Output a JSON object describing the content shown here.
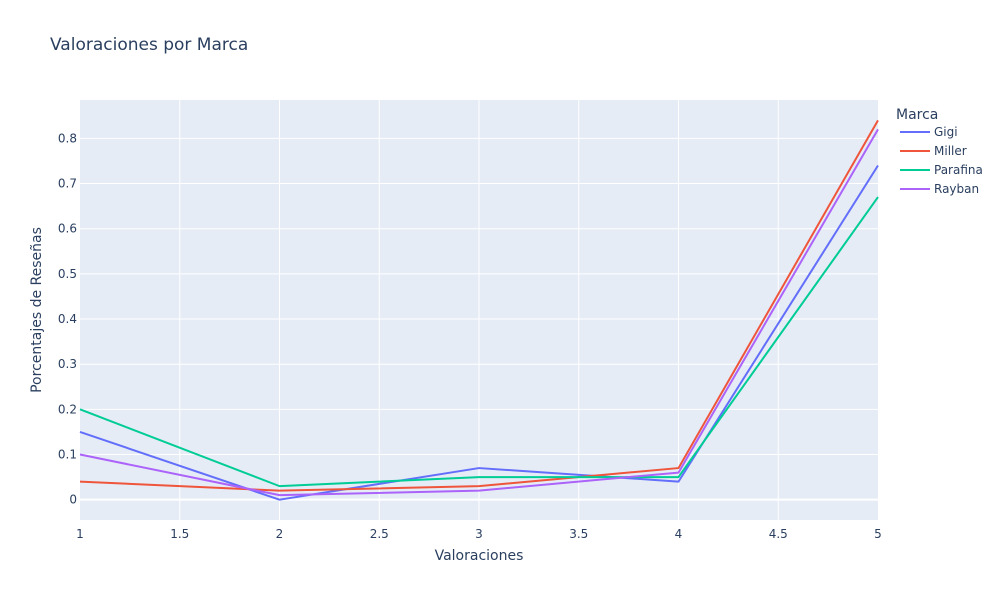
{
  "chart_data": {
    "type": "line",
    "title": "Valoraciones por Marca",
    "xlabel": "Valoraciones",
    "ylabel": "Porcentajes de Reseñas",
    "xlim": [
      1,
      5
    ],
    "ylim": [
      -0.045,
      0.885
    ],
    "x_ticks": [
      "1",
      "1.5",
      "2",
      "2.5",
      "3",
      "3.5",
      "4",
      "4.5",
      "5"
    ],
    "y_ticks": [
      "0",
      "0.1",
      "0.2",
      "0.3",
      "0.4",
      "0.5",
      "0.6",
      "0.7",
      "0.8"
    ],
    "grid": true,
    "legend": {
      "title": "Marca",
      "position": "right"
    },
    "x": [
      1,
      2,
      3,
      4,
      5
    ],
    "series": [
      {
        "name": "Gigi",
        "color": "#636efa",
        "values": [
          0.15,
          0.0,
          0.07,
          0.04,
          0.74
        ]
      },
      {
        "name": "Miller",
        "color": "#ef553b",
        "values": [
          0.04,
          0.02,
          0.03,
          0.07,
          0.84
        ]
      },
      {
        "name": "Parafina",
        "color": "#00cc96",
        "values": [
          0.2,
          0.03,
          0.05,
          0.05,
          0.67
        ]
      },
      {
        "name": "Rayban",
        "color": "#ab63fa",
        "values": [
          0.1,
          0.01,
          0.02,
          0.06,
          0.82
        ]
      }
    ]
  }
}
